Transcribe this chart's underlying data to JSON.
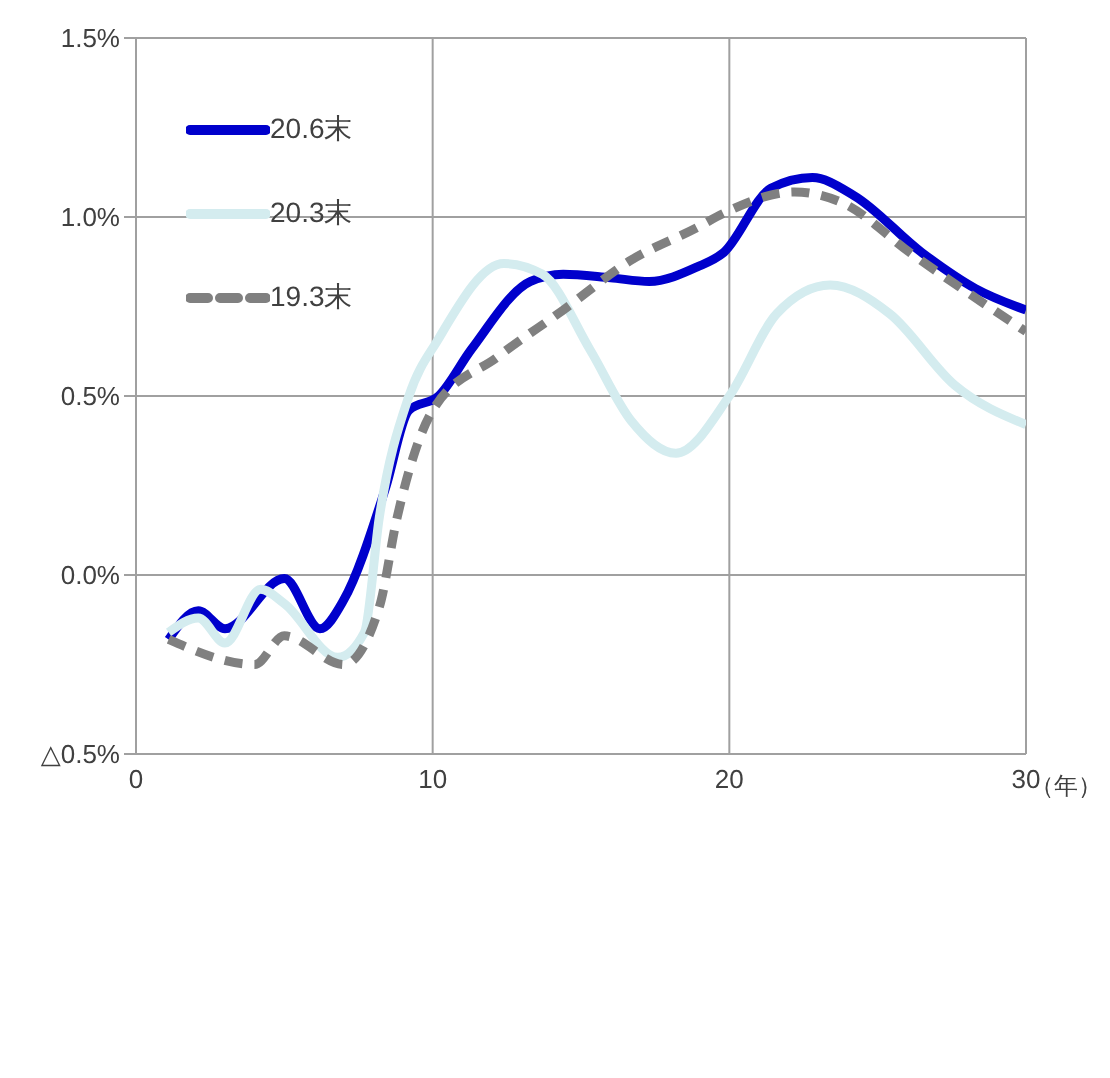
{
  "chart_data": {
    "type": "line",
    "xlabel": "（年）",
    "xlim": [
      0,
      30
    ],
    "xticks": [
      0,
      10,
      20,
      30
    ],
    "ylim": [
      -0.5,
      1.5
    ],
    "yticks": [
      {
        "value": -0.5,
        "label": "△0.5%"
      },
      {
        "value": 0,
        "label": "0.0%"
      },
      {
        "value": 0.5,
        "label": "0.5%"
      },
      {
        "value": 1,
        "label": "1.0%"
      },
      {
        "value": 1.5,
        "label": "1.5%"
      }
    ],
    "grid": true,
    "legend": "top left",
    "marker": "none",
    "series": [
      {
        "name": "20.6末",
        "color": "#0000cc",
        "line_style": "solid",
        "x": [
          1.1,
          2.1,
          3,
          5,
          6.2,
          7,
          8.4,
          9.2,
          10.2,
          11.3,
          13.3,
          14.4,
          16,
          17.3,
          18.9,
          19.8,
          21.4,
          22.8,
          24.2,
          26.5,
          28.3,
          30
        ],
        "values": [
          -0.18,
          -0.1,
          -0.15,
          -0.01,
          -0.15,
          -0.07,
          0.24,
          0.46,
          0.5,
          0.63,
          0.82,
          0.84,
          0.83,
          0.82,
          0.86,
          0.9,
          1.08,
          1.11,
          1.06,
          0.9,
          0.8,
          0.74
        ]
      },
      {
        "name": "20.3末",
        "color": "#d4ecef",
        "line_style": "solid",
        "x": [
          1.1,
          2.1,
          3,
          4.2,
          5,
          6.8,
          7.7,
          8.2,
          9.2,
          10.2,
          12.4,
          13.7,
          15.3,
          16.7,
          18.2,
          20,
          21.6,
          23.4,
          25.4,
          27.6,
          30
        ],
        "values": [
          -0.16,
          -0.12,
          -0.19,
          -0.04,
          -0.08,
          -0.23,
          -0.16,
          0.16,
          0.5,
          0.66,
          0.87,
          0.84,
          0.63,
          0.43,
          0.34,
          0.5,
          0.73,
          0.81,
          0.73,
          0.53,
          0.42
        ]
      },
      {
        "name": "19.3末",
        "color": "#808080",
        "line_style": "dashed",
        "x": [
          1.1,
          4,
          5,
          7,
          8.2,
          8.8,
          10,
          12.2,
          14.4,
          16.7,
          18.9,
          19.8,
          22.2,
          23.8,
          26.1,
          30
        ],
        "values": [
          -0.18,
          -0.25,
          -0.17,
          -0.25,
          -0.09,
          0.16,
          0.46,
          0.61,
          0.74,
          0.88,
          0.97,
          1.01,
          1.07,
          1.04,
          0.9,
          0.68
        ]
      }
    ]
  }
}
